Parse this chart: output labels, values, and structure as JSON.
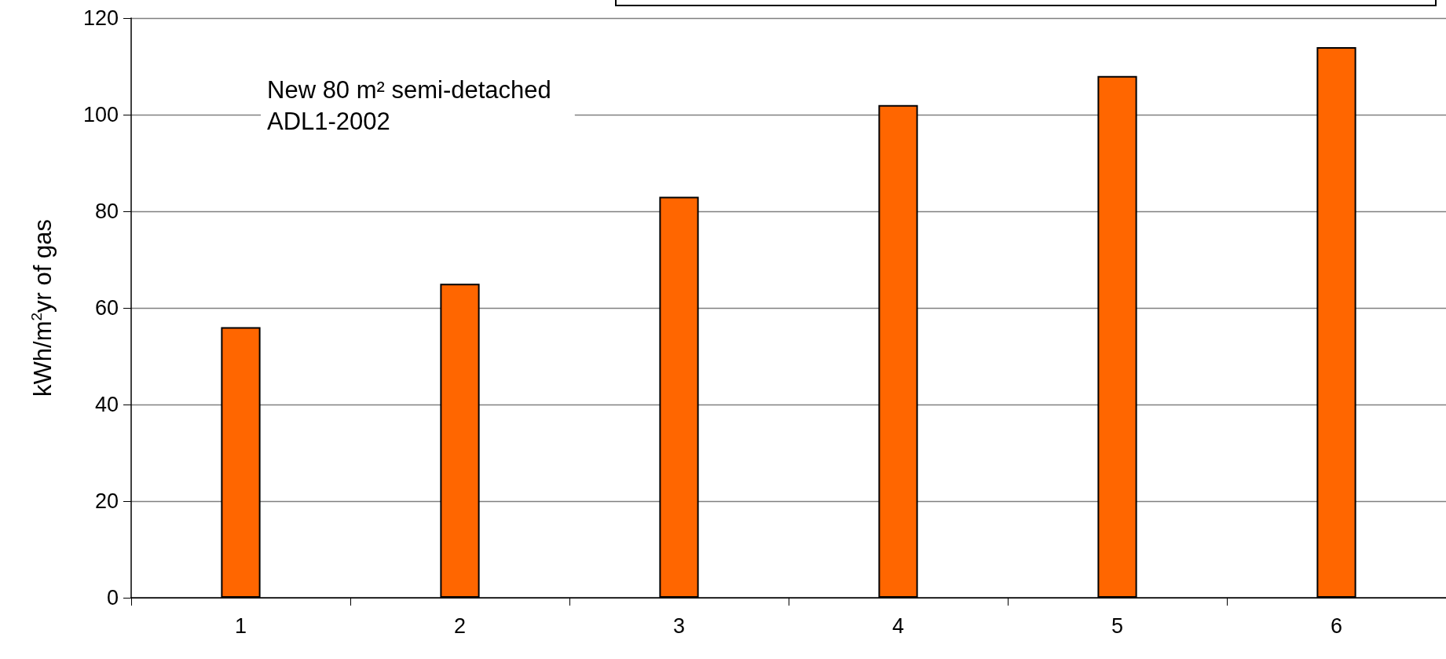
{
  "chart_data": {
    "type": "bar",
    "ylabel": "kWh/m$^{2}$yr of gas",
    "categories": [
      "1",
      "2",
      "3",
      "4",
      "5",
      "6"
    ],
    "values": [
      56,
      65,
      83,
      102,
      108,
      114
    ],
    "color": "#ff6600",
    "ylim": [
      0,
      120
    ],
    "yticks": [
      0,
      20,
      40,
      60,
      80,
      100,
      120
    ],
    "grid": "y",
    "annotations": [
      "New 80 m² semi-detached\nADL1-2002"
    ]
  }
}
